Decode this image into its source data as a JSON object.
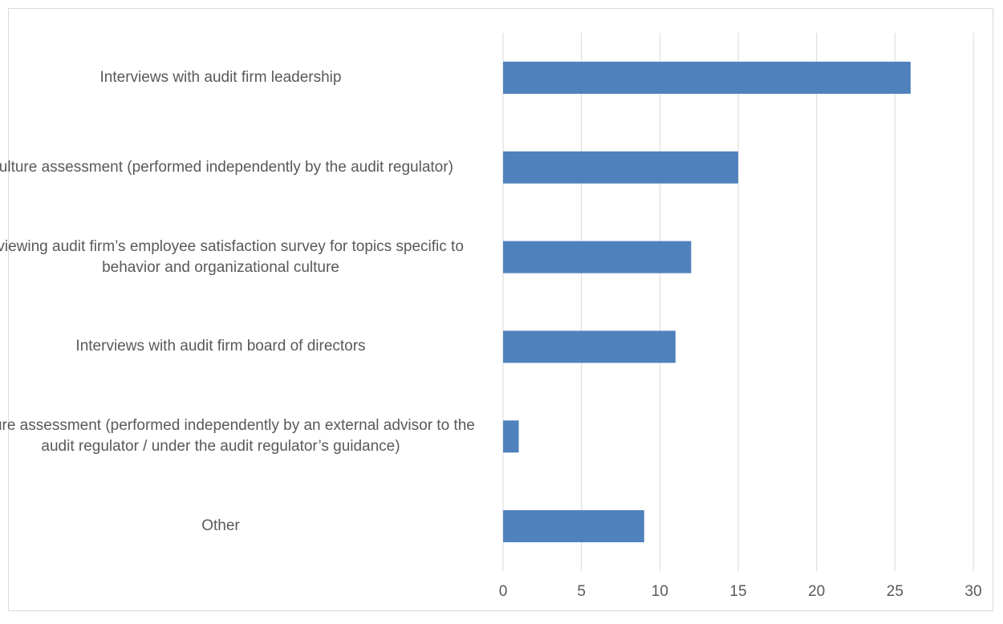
{
  "chart_data": {
    "type": "bar",
    "orientation": "horizontal",
    "categories": [
      "Interviews with audit firm leadership",
      "Culture assessment (performed independently by the audit regulator)",
      "Reviewing audit firm’s employee satisfaction survey for topics specific to behavior and organizational culture",
      "Interviews with audit firm board of directors",
      "Culture assessment (performed independently by an external advisor to the audit regulator / under the audit regulator’s guidance)",
      "Other"
    ],
    "values": [
      26,
      15,
      12,
      11,
      1,
      9
    ],
    "xlim": [
      0,
      30
    ],
    "xticks": [
      "0",
      "5",
      "10",
      "15",
      "20",
      "25",
      "30"
    ],
    "xlabel": "",
    "ylabel": "",
    "title": "",
    "grid": "vertical gridlines on",
    "legend": "none",
    "bar_color": "#4f81bd",
    "grid_color": "#d9d9d9",
    "label_color": "#595959"
  }
}
